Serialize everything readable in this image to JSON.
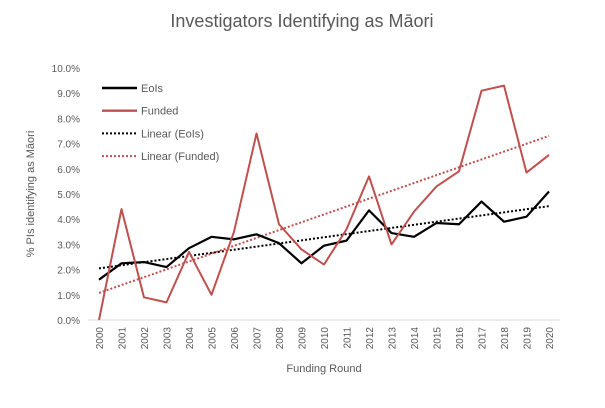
{
  "chart_data": {
    "type": "line",
    "title": "Investigators Identifying as Māori",
    "xlabel": "Funding Round",
    "ylabel": "% PIs identifying as Māori",
    "ylim": [
      0,
      10
    ],
    "y_ticks": [
      "0.0%",
      "1.0%",
      "2.0%",
      "3.0%",
      "4.0%",
      "5.0%",
      "6.0%",
      "7.0%",
      "8.0%",
      "9.0%",
      "10.0%"
    ],
    "x": [
      "2000",
      "2001",
      "2002",
      "2003",
      "2004",
      "2005",
      "2006",
      "2007",
      "2008",
      "2009",
      "2010",
      "2011",
      "2012",
      "2013",
      "2014",
      "2015",
      "2016",
      "2017",
      "2018",
      "2019",
      "2020"
    ],
    "grid": false,
    "legend_position": "top-left",
    "series": [
      {
        "name": "EoIs",
        "color": "#000000",
        "style": "solid",
        "values": [
          1.6,
          2.25,
          2.3,
          2.1,
          2.85,
          3.3,
          3.2,
          3.4,
          3.05,
          2.25,
          2.95,
          3.15,
          4.35,
          3.45,
          3.3,
          3.85,
          3.8,
          4.7,
          3.9,
          4.1,
          5.1
        ]
      },
      {
        "name": "Funded",
        "color": "#C0504D",
        "style": "solid",
        "values": [
          0.0,
          4.4,
          0.9,
          0.7,
          2.7,
          1.0,
          3.5,
          7.4,
          3.8,
          2.8,
          2.2,
          3.6,
          5.7,
          3.0,
          4.3,
          5.3,
          5.9,
          9.1,
          9.3,
          5.85,
          6.55
        ]
      }
    ],
    "trendlines": [
      {
        "name": "Linear (EoIs)",
        "of": "EoIs",
        "color": "#000000",
        "style": "dotted"
      },
      {
        "name": "Linear (Funded)",
        "of": "Funded",
        "color": "#C0504D",
        "style": "dotted"
      }
    ]
  }
}
